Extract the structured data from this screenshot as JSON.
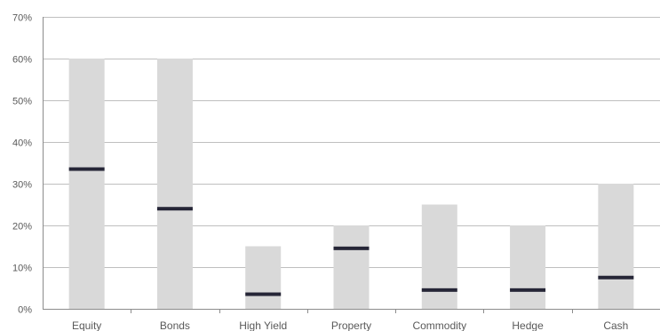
{
  "chart_data": {
    "type": "bar",
    "subtype": "floating-range-with-marker",
    "categories": [
      "Equity",
      "Bonds",
      "High Yield",
      "Property",
      "Commodity",
      "Hedge",
      "Cash"
    ],
    "series": [
      {
        "values_low": [
          0,
          0,
          0,
          0,
          0,
          0,
          0
        ],
        "values_high": [
          60,
          60,
          15,
          20,
          25,
          20,
          30
        ]
      },
      {
        "values": [
          33.5,
          24,
          3.5,
          14.5,
          4.5,
          4.5,
          7.5
        ]
      }
    ],
    "y_ticks": [
      "0%",
      "10%",
      "20%",
      "30%",
      "40%",
      "50%",
      "60%",
      "70%"
    ],
    "ylim": [
      0,
      70
    ],
    "grid": true,
    "colors": {
      "range": "#d9d9d9",
      "marker": "#262637",
      "grid": "#bfbfbf",
      "axis": "#8c8c8c",
      "text": "#595959"
    }
  }
}
